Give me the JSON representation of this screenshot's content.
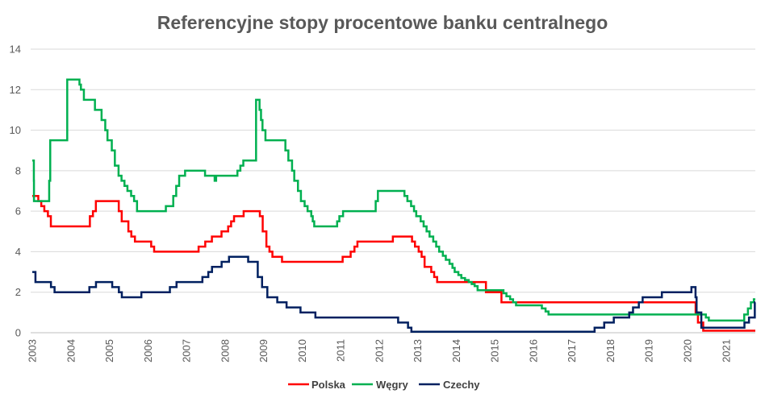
{
  "chart_data": {
    "type": "line",
    "title": "Referencyjne stopy procentowe banku centralnego",
    "x_range": [
      "2003-01-01",
      "2021-10-05"
    ],
    "x_ticks": [
      "2003",
      "2004",
      "2005",
      "2006",
      "2007",
      "2008",
      "2009",
      "2010",
      "2011",
      "2012",
      "2013",
      "2014",
      "2015",
      "2016",
      "2017",
      "2018",
      "2019",
      "2020",
      "2021"
    ],
    "ylim": [
      0,
      14
    ],
    "y_ticks": [
      0,
      2,
      4,
      6,
      8,
      10,
      12,
      14
    ],
    "grid": true,
    "legend_position": "bottom",
    "series": [
      {
        "name": "Polska",
        "color": "#FF0000",
        "points": [
          [
            "2003-01-01",
            6.75
          ],
          [
            "2003-02-27",
            6.5
          ],
          [
            "2003-03-27",
            6.25
          ],
          [
            "2003-04-25",
            6.0
          ],
          [
            "2003-05-29",
            5.75
          ],
          [
            "2003-06-26",
            5.25
          ],
          [
            "2004-06-30",
            5.75
          ],
          [
            "2004-07-29",
            6.0
          ],
          [
            "2004-08-26",
            6.5
          ],
          [
            "2005-03-31",
            6.0
          ],
          [
            "2005-04-28",
            5.5
          ],
          [
            "2005-06-30",
            5.0
          ],
          [
            "2005-07-28",
            4.75
          ],
          [
            "2005-08-31",
            4.5
          ],
          [
            "2006-02-01",
            4.25
          ],
          [
            "2006-03-01",
            4.0
          ],
          [
            "2007-04-26",
            4.25
          ],
          [
            "2007-06-28",
            4.5
          ],
          [
            "2007-08-30",
            4.75
          ],
          [
            "2007-11-29",
            5.0
          ],
          [
            "2008-01-31",
            5.25
          ],
          [
            "2008-02-28",
            5.5
          ],
          [
            "2008-03-27",
            5.75
          ],
          [
            "2008-06-26",
            6.0
          ],
          [
            "2008-11-27",
            5.75
          ],
          [
            "2008-12-24",
            5.0
          ],
          [
            "2009-01-28",
            4.25
          ],
          [
            "2009-02-26",
            4.0
          ],
          [
            "2009-03-26",
            3.75
          ],
          [
            "2009-06-25",
            3.5
          ],
          [
            "2011-01-20",
            3.75
          ],
          [
            "2011-04-06",
            4.0
          ],
          [
            "2011-05-12",
            4.25
          ],
          [
            "2011-06-09",
            4.5
          ],
          [
            "2012-05-10",
            4.75
          ],
          [
            "2012-11-08",
            4.5
          ],
          [
            "2012-12-06",
            4.25
          ],
          [
            "2013-01-10",
            4.0
          ],
          [
            "2013-02-07",
            3.75
          ],
          [
            "2013-03-07",
            3.25
          ],
          [
            "2013-05-09",
            3.0
          ],
          [
            "2013-06-06",
            2.75
          ],
          [
            "2013-07-04",
            2.5
          ],
          [
            "2014-10-09",
            2.0
          ],
          [
            "2015-03-05",
            1.5
          ],
          [
            "2020-03-18",
            1.0
          ],
          [
            "2020-04-09",
            0.5
          ],
          [
            "2020-05-29",
            0.1
          ]
        ]
      },
      {
        "name": "Węgry",
        "color": "#00B050",
        "points": [
          [
            "2003-01-01",
            8.5
          ],
          [
            "2003-01-16",
            7.5
          ],
          [
            "2003-01-17",
            6.5
          ],
          [
            "2003-06-10",
            7.5
          ],
          [
            "2003-06-20",
            9.5
          ],
          [
            "2003-11-28",
            12.5
          ],
          [
            "2004-03-23",
            12.25
          ],
          [
            "2004-04-06",
            12.0
          ],
          [
            "2004-05-04",
            11.5
          ],
          [
            "2004-08-17",
            11.0
          ],
          [
            "2004-10-19",
            10.5
          ],
          [
            "2004-11-23",
            10.0
          ],
          [
            "2004-12-14",
            9.5
          ],
          [
            "2005-01-24",
            9.0
          ],
          [
            "2005-02-22",
            8.25
          ],
          [
            "2005-03-29",
            7.75
          ],
          [
            "2005-04-26",
            7.5
          ],
          [
            "2005-05-24",
            7.25
          ],
          [
            "2005-06-21",
            7.0
          ],
          [
            "2005-07-26",
            6.75
          ],
          [
            "2005-08-23",
            6.5
          ],
          [
            "2005-09-20",
            6.0
          ],
          [
            "2006-06-20",
            6.25
          ],
          [
            "2006-08-29",
            6.75
          ],
          [
            "2006-09-26",
            7.25
          ],
          [
            "2006-10-24",
            7.75
          ],
          [
            "2006-12-19",
            8.0
          ],
          [
            "2007-06-26",
            7.75
          ],
          [
            "2007-09-25",
            7.5
          ],
          [
            "2007-10-09",
            7.75
          ],
          [
            "2008-04-28",
            8.0
          ],
          [
            "2008-05-26",
            8.25
          ],
          [
            "2008-06-23",
            8.5
          ],
          [
            "2008-10-22",
            11.5
          ],
          [
            "2008-11-24",
            11.0
          ],
          [
            "2008-12-08",
            10.5
          ],
          [
            "2008-12-22",
            10.0
          ],
          [
            "2009-01-19",
            9.5
          ],
          [
            "2009-07-27",
            9.0
          ],
          [
            "2009-08-24",
            8.5
          ],
          [
            "2009-09-28",
            8.0
          ],
          [
            "2009-10-19",
            7.5
          ],
          [
            "2009-11-23",
            7.0
          ],
          [
            "2009-12-21",
            6.5
          ],
          [
            "2010-01-25",
            6.25
          ],
          [
            "2010-02-22",
            6.0
          ],
          [
            "2010-03-29",
            5.75
          ],
          [
            "2010-04-12",
            5.5
          ],
          [
            "2010-04-26",
            5.25
          ],
          [
            "2010-11-29",
            5.5
          ],
          [
            "2010-12-20",
            5.75
          ],
          [
            "2011-01-24",
            6.0
          ],
          [
            "2011-11-29",
            6.5
          ],
          [
            "2011-12-20",
            7.0
          ],
          [
            "2012-08-28",
            6.75
          ],
          [
            "2012-09-25",
            6.5
          ],
          [
            "2012-10-30",
            6.25
          ],
          [
            "2012-11-27",
            6.0
          ],
          [
            "2012-12-18",
            5.75
          ],
          [
            "2013-01-29",
            5.5
          ],
          [
            "2013-02-26",
            5.25
          ],
          [
            "2013-03-26",
            5.0
          ],
          [
            "2013-04-23",
            4.75
          ],
          [
            "2013-05-28",
            4.5
          ],
          [
            "2013-06-25",
            4.25
          ],
          [
            "2013-07-23",
            4.0
          ],
          [
            "2013-08-27",
            3.8
          ],
          [
            "2013-09-24",
            3.6
          ],
          [
            "2013-10-29",
            3.4
          ],
          [
            "2013-11-26",
            3.2
          ],
          [
            "2013-12-17",
            3.0
          ],
          [
            "2014-01-21",
            2.85
          ],
          [
            "2014-02-18",
            2.7
          ],
          [
            "2014-03-25",
            2.6
          ],
          [
            "2014-04-29",
            2.5
          ],
          [
            "2014-05-27",
            2.4
          ],
          [
            "2014-06-24",
            2.3
          ],
          [
            "2014-07-22",
            2.1
          ],
          [
            "2015-03-24",
            1.95
          ],
          [
            "2015-04-21",
            1.8
          ],
          [
            "2015-05-26",
            1.65
          ],
          [
            "2015-06-23",
            1.5
          ],
          [
            "2015-07-21",
            1.35
          ],
          [
            "2016-03-22",
            1.2
          ],
          [
            "2016-04-26",
            1.05
          ],
          [
            "2016-05-24",
            0.9
          ],
          [
            "2020-06-23",
            0.75
          ],
          [
            "2020-07-21",
            0.6
          ],
          [
            "2021-06-22",
            0.9
          ],
          [
            "2021-07-27",
            1.2
          ],
          [
            "2021-08-24",
            1.5
          ],
          [
            "2021-09-21",
            1.65
          ]
        ]
      },
      {
        "name": "Czechy",
        "color": "#002060",
        "points": [
          [
            "2003-01-01",
            3.0
          ],
          [
            "2003-01-31",
            2.5
          ],
          [
            "2003-06-27",
            2.25
          ],
          [
            "2003-07-31",
            2.0
          ],
          [
            "2004-06-25",
            2.25
          ],
          [
            "2004-08-27",
            2.5
          ],
          [
            "2005-01-28",
            2.25
          ],
          [
            "2005-04-01",
            2.0
          ],
          [
            "2005-04-29",
            1.75
          ],
          [
            "2005-10-31",
            2.0
          ],
          [
            "2006-07-28",
            2.25
          ],
          [
            "2006-09-29",
            2.5
          ],
          [
            "2007-06-01",
            2.75
          ],
          [
            "2007-07-27",
            3.0
          ],
          [
            "2007-08-31",
            3.25
          ],
          [
            "2007-11-30",
            3.5
          ],
          [
            "2008-02-08",
            3.75
          ],
          [
            "2008-08-08",
            3.5
          ],
          [
            "2008-11-07",
            2.75
          ],
          [
            "2008-12-18",
            2.25
          ],
          [
            "2009-02-06",
            1.75
          ],
          [
            "2009-05-11",
            1.5
          ],
          [
            "2009-08-07",
            1.25
          ],
          [
            "2009-12-17",
            1.0
          ],
          [
            "2010-05-07",
            0.75
          ],
          [
            "2012-06-29",
            0.5
          ],
          [
            "2012-10-01",
            0.25
          ],
          [
            "2012-11-02",
            0.05
          ],
          [
            "2017-08-04",
            0.25
          ],
          [
            "2017-11-03",
            0.5
          ],
          [
            "2018-02-02",
            0.75
          ],
          [
            "2018-06-28",
            1.0
          ],
          [
            "2018-08-03",
            1.25
          ],
          [
            "2018-09-27",
            1.5
          ],
          [
            "2018-11-02",
            1.75
          ],
          [
            "2019-05-03",
            2.0
          ],
          [
            "2020-02-07",
            2.25
          ],
          [
            "2020-03-17",
            1.75
          ],
          [
            "2020-03-27",
            1.0
          ],
          [
            "2020-05-11",
            0.25
          ],
          [
            "2021-06-24",
            0.5
          ],
          [
            "2021-08-06",
            0.75
          ],
          [
            "2021-09-30",
            1.5
          ]
        ]
      }
    ]
  }
}
